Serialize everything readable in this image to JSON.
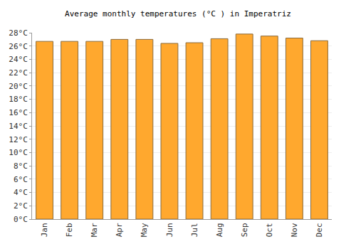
{
  "chart_data": {
    "type": "bar",
    "title": "Average monthly temperatures (°C ) in Imperatriz",
    "categories": [
      "Jan",
      "Feb",
      "Mar",
      "Apr",
      "May",
      "Jun",
      "Jul",
      "Aug",
      "Sep",
      "Oct",
      "Nov",
      "Dec"
    ],
    "values": [
      26.7,
      26.7,
      26.7,
      27.0,
      27.0,
      26.4,
      26.5,
      27.1,
      27.8,
      27.5,
      27.2,
      26.8
    ],
    "color": "#ffa82e",
    "ylim": [
      0,
      28
    ],
    "yticks": [
      {
        "value": 0,
        "label": "0°C"
      },
      {
        "value": 2,
        "label": "2°C"
      },
      {
        "value": 4,
        "label": "4°C"
      },
      {
        "value": 6,
        "label": "6°C"
      },
      {
        "value": 8,
        "label": "8°C"
      },
      {
        "value": 10,
        "label": "10°C"
      },
      {
        "value": 12,
        "label": "12°C"
      },
      {
        "value": 14,
        "label": "14°C"
      },
      {
        "value": 16,
        "label": "16°C"
      },
      {
        "value": 18,
        "label": "18°C"
      },
      {
        "value": 20,
        "label": "20°C"
      },
      {
        "value": 22,
        "label": "22°C"
      },
      {
        "value": 24,
        "label": "24°C"
      },
      {
        "value": 26,
        "label": "26°C"
      },
      {
        "value": 28,
        "label": "28°C"
      }
    ],
    "grid": true
  }
}
